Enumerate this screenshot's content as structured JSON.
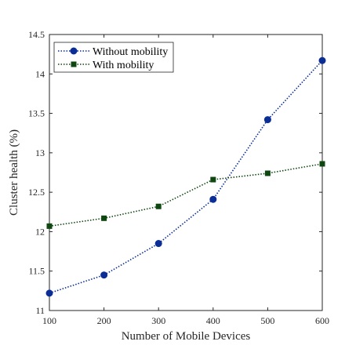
{
  "chart_data": {
    "type": "line",
    "title": "",
    "xlabel": "Number of Mobile Devices",
    "ylabel": "Cluster health (%)",
    "x": [
      100,
      200,
      300,
      400,
      500,
      600
    ],
    "xlim": [
      100,
      600
    ],
    "ylim": [
      11,
      14.5
    ],
    "xticks": [
      100,
      200,
      300,
      400,
      500,
      600
    ],
    "yticks": [
      11,
      11.5,
      12,
      12.5,
      13,
      13.5,
      14,
      14.5
    ],
    "grid": false,
    "legend_position": "top-left",
    "series": [
      {
        "name": "Without mobility",
        "values": [
          11.22,
          11.45,
          11.85,
          12.41,
          13.42,
          14.17
        ],
        "color": "#0a2d96",
        "marker": "circle",
        "line_style": "dotted"
      },
      {
        "name": "With mobility",
        "values": [
          12.07,
          12.17,
          12.32,
          12.66,
          12.74,
          12.86
        ],
        "color": "#0f4710",
        "marker": "square",
        "line_style": "dotted"
      }
    ]
  }
}
